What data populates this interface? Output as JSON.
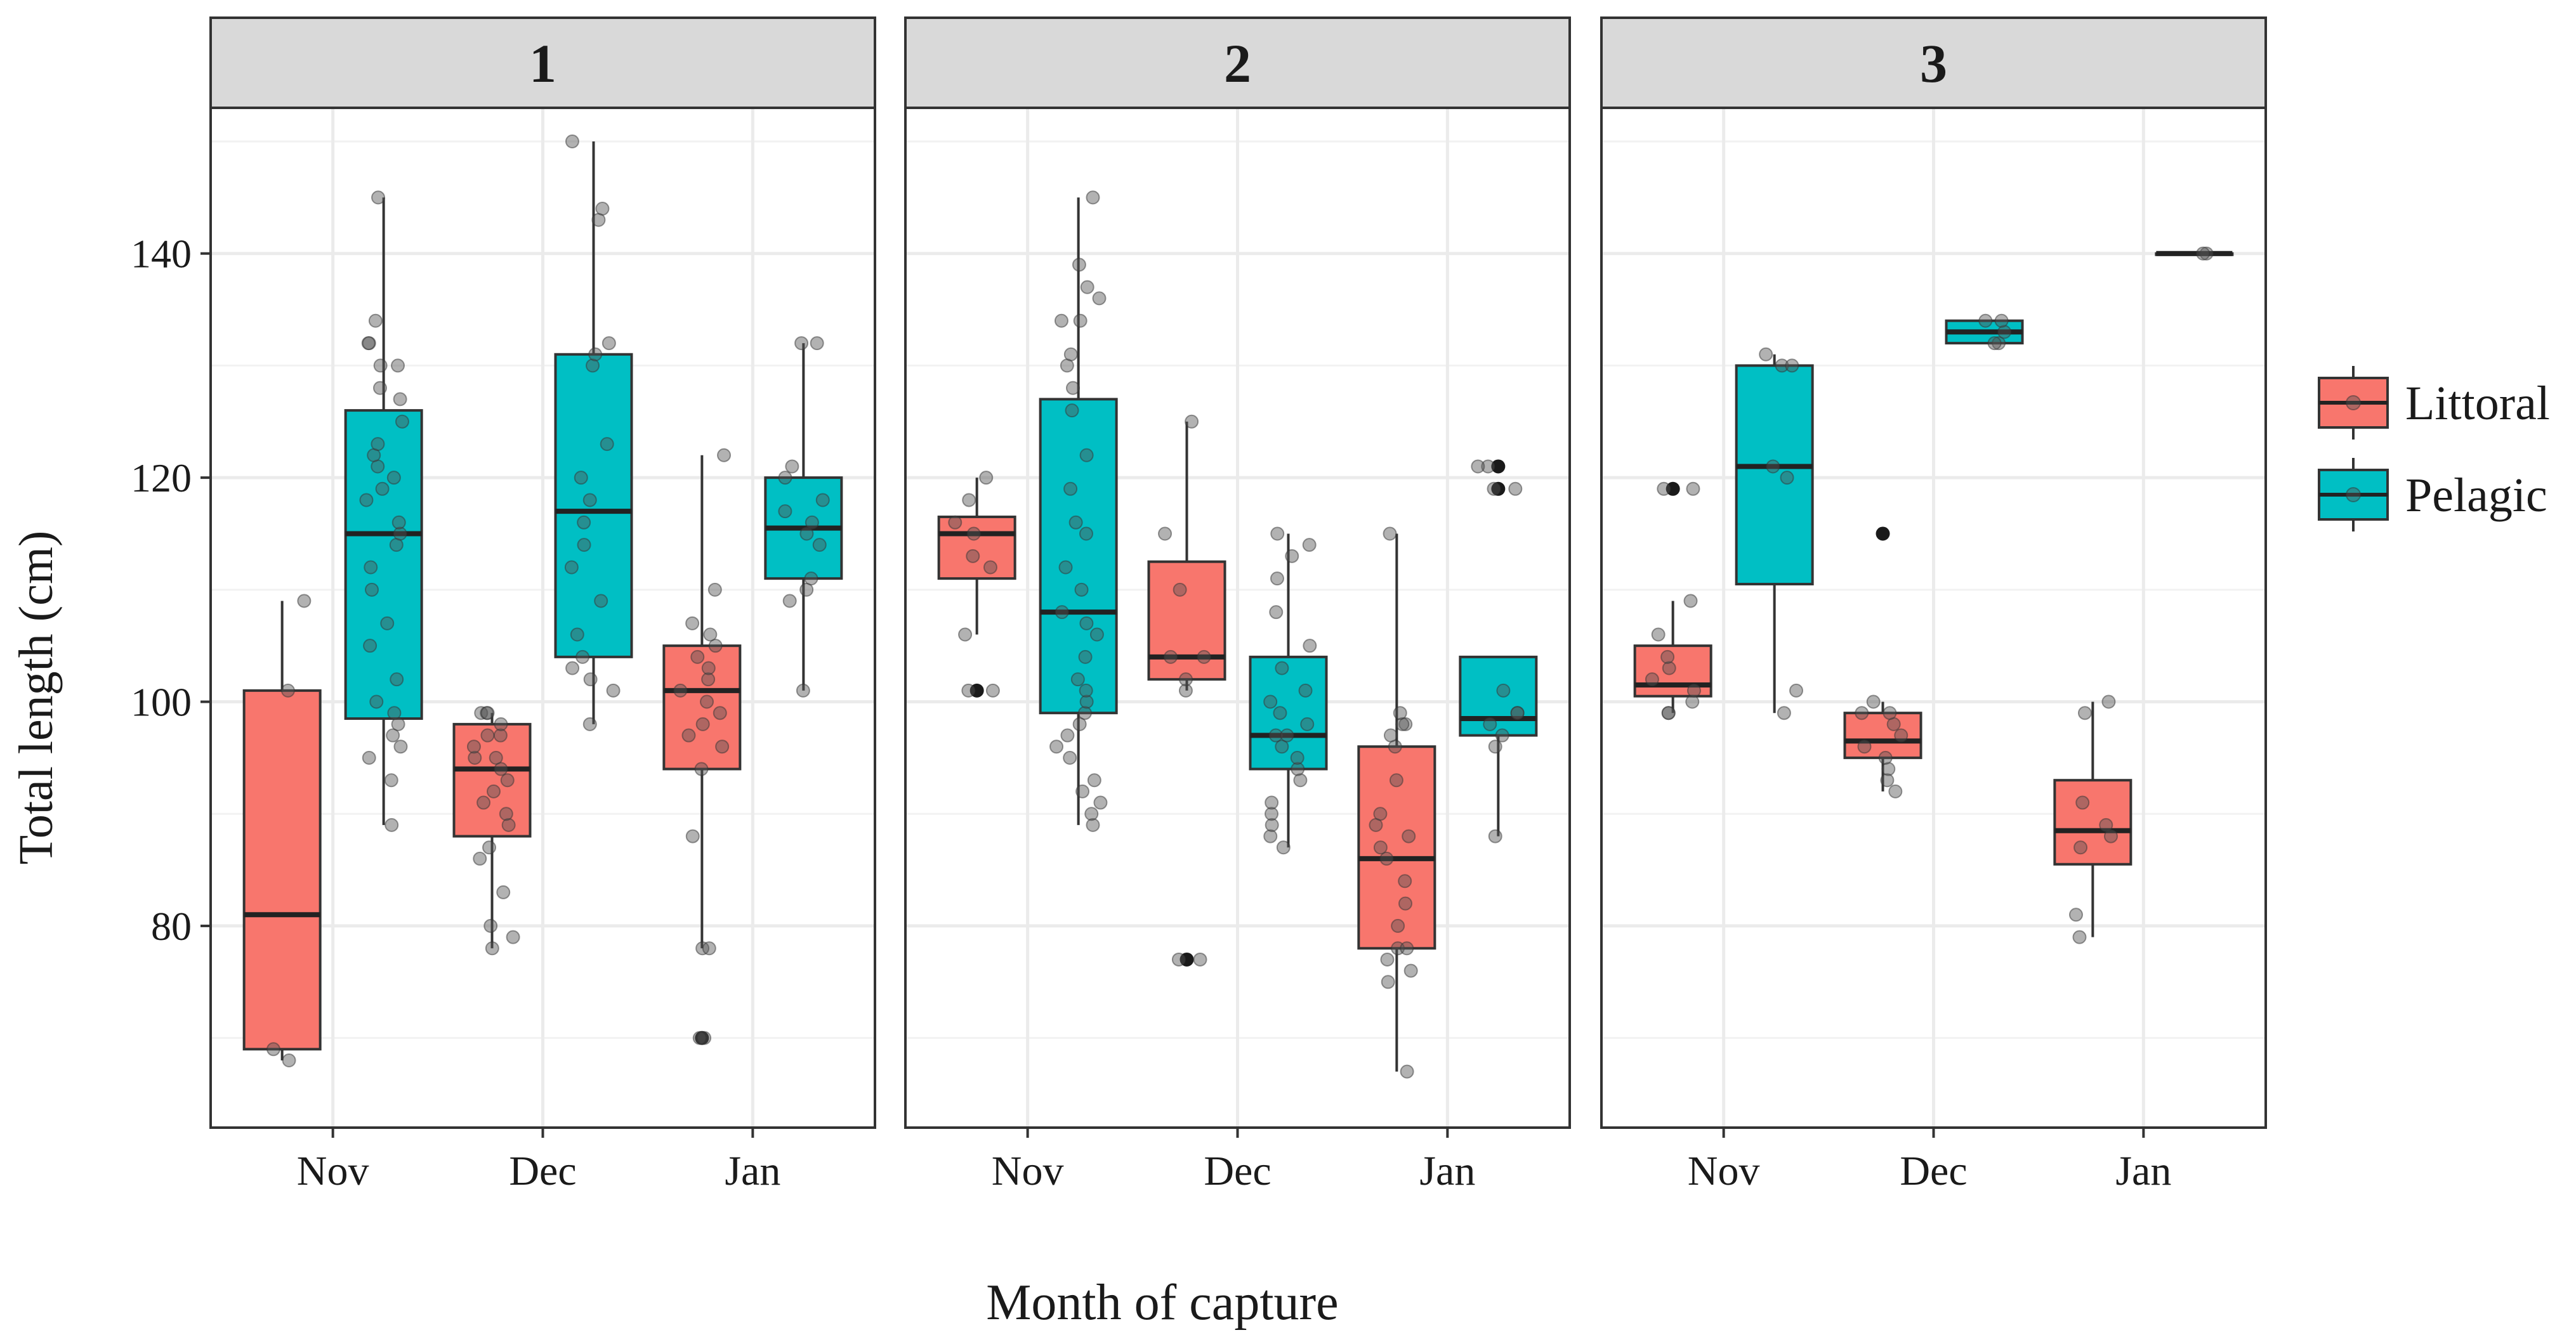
{
  "chart_data": {
    "type": "boxplot",
    "xlabel": "Month of capture",
    "ylabel": "Total length (cm)",
    "ylim": [
      62,
      153
    ],
    "yticks": [
      80,
      100,
      120,
      140
    ],
    "categories": [
      "Nov",
      "Dec",
      "Jan"
    ],
    "legend": {
      "position": "right",
      "entries": [
        {
          "name": "Littoral",
          "color": "#F8766D"
        },
        {
          "name": "Pelagic",
          "color": "#00BFC4"
        }
      ]
    },
    "colors": {
      "Littoral": "#F8766D",
      "Pelagic": "#00BFC4",
      "strip": "#d9d9d9",
      "panel_border": "#333333",
      "grid": "#ebebeb"
    },
    "panels": [
      {
        "label": "1",
        "boxes": [
          {
            "month": "Nov",
            "group": "Littoral",
            "min": 68,
            "q1": 69,
            "median": 81,
            "q3": 101,
            "max": 109,
            "outliers": [],
            "points": [
              68,
              69,
              101,
              109
            ]
          },
          {
            "month": "Nov",
            "group": "Pelagic",
            "min": 89,
            "q1": 98.5,
            "median": 115,
            "q3": 126,
            "max": 145,
            "outliers": [],
            "points": [
              89,
              93,
              95,
              96,
              97,
              98,
              99,
              100,
              102,
              105,
              107,
              110,
              112,
              114,
              115,
              116,
              118,
              119,
              120,
              121,
              122,
              123,
              125,
              127,
              128,
              130,
              130,
              132,
              132,
              134,
              145
            ]
          },
          {
            "month": "Dec",
            "group": "Littoral",
            "min": 78,
            "q1": 88,
            "median": 94,
            "q3": 98,
            "max": 99,
            "outliers": [],
            "points": [
              78,
              79,
              80,
              83,
              86,
              87,
              89,
              90,
              91,
              92,
              93,
              94,
              95,
              95,
              96,
              97,
              97,
              98,
              99,
              99,
              99
            ]
          },
          {
            "month": "Dec",
            "group": "Pelagic",
            "min": 98,
            "q1": 104,
            "median": 117,
            "q3": 131,
            "max": 150,
            "outliers": [],
            "points": [
              98,
              101,
              102,
              103,
              104,
              106,
              109,
              112,
              114,
              116,
              118,
              120,
              123,
              130,
              131,
              132,
              143,
              144,
              150
            ]
          },
          {
            "month": "Jan",
            "group": "Littoral",
            "min": 78,
            "q1": 94,
            "median": 101,
            "q3": 105,
            "max": 122,
            "outliers": [
              70
            ],
            "points": [
              70,
              70,
              78,
              78,
              88,
              94,
              96,
              97,
              98,
              99,
              100,
              101,
              102,
              103,
              104,
              105,
              106,
              107,
              110,
              122
            ]
          },
          {
            "month": "Jan",
            "group": "Pelagic",
            "min": 101,
            "q1": 111,
            "median": 115.5,
            "q3": 120,
            "max": 132,
            "outliers": [],
            "points": [
              101,
              109,
              110,
              111,
              114,
              115,
              116,
              117,
              118,
              120,
              121,
              132,
              132
            ]
          }
        ]
      },
      {
        "label": "2",
        "boxes": [
          {
            "month": "Nov",
            "group": "Littoral",
            "min": 106,
            "q1": 111,
            "median": 115,
            "q3": 116.5,
            "max": 120,
            "outliers": [
              101
            ],
            "points": [
              101,
              101,
              106,
              112,
              113,
              115,
              116,
              118,
              120
            ]
          },
          {
            "month": "Nov",
            "group": "Pelagic",
            "min": 89,
            "q1": 99,
            "median": 108,
            "q3": 127,
            "max": 145,
            "outliers": [],
            "points": [
              89,
              90,
              91,
              92,
              93,
              95,
              96,
              97,
              98,
              99,
              100,
              101,
              102,
              104,
              106,
              107,
              108,
              110,
              112,
              115,
              116,
              119,
              122,
              126,
              128,
              130,
              131,
              134,
              134,
              136,
              137,
              139,
              145
            ]
          },
          {
            "month": "Dec",
            "group": "Littoral",
            "min": 101,
            "q1": 102,
            "median": 104,
            "q3": 112.5,
            "max": 125,
            "outliers": [
              77
            ],
            "points": [
              77,
              77,
              101,
              102,
              104,
              104,
              110,
              115,
              125
            ]
          },
          {
            "month": "Dec",
            "group": "Pelagic",
            "min": 87,
            "q1": 94,
            "median": 97,
            "q3": 104,
            "max": 115,
            "outliers": [],
            "points": [
              87,
              88,
              89,
              90,
              91,
              93,
              94,
              95,
              96,
              97,
              97,
              98,
              99,
              100,
              101,
              103,
              105,
              108,
              111,
              113,
              114,
              115
            ]
          },
          {
            "month": "Jan",
            "group": "Littoral",
            "min": 67,
            "q1": 78,
            "median": 86,
            "q3": 96,
            "max": 115,
            "outliers": [],
            "points": [
              67,
              75,
              76,
              77,
              78,
              78,
              80,
              82,
              84,
              86,
              87,
              88,
              89,
              90,
              93,
              96,
              97,
              98,
              98,
              99,
              115
            ]
          },
          {
            "month": "Jan",
            "group": "Pelagic",
            "min": 88,
            "q1": 97,
            "median": 98.5,
            "q3": 104,
            "max": 104,
            "outliers": [
              119,
              121
            ],
            "points": [
              88,
              96,
              97,
              98,
              99,
              99,
              101,
              119,
              119,
              121,
              121
            ]
          }
        ]
      },
      {
        "label": "3",
        "boxes": [
          {
            "month": "Nov",
            "group": "Littoral",
            "min": 99,
            "q1": 100.5,
            "median": 101.5,
            "q3": 105,
            "max": 109,
            "outliers": [
              119
            ],
            "points": [
              99,
              99,
              100,
              101,
              102,
              103,
              104,
              106,
              109,
              119,
              119
            ]
          },
          {
            "month": "Nov",
            "group": "Pelagic",
            "min": 99,
            "q1": 110.5,
            "median": 121,
            "q3": 130,
            "max": 131,
            "outliers": [],
            "points": [
              99,
              101,
              120,
              121,
              130,
              130,
              131
            ]
          },
          {
            "month": "Dec",
            "group": "Littoral",
            "min": 92,
            "q1": 95,
            "median": 96.5,
            "q3": 99,
            "max": 100,
            "outliers": [
              115
            ],
            "points": [
              92,
              93,
              94,
              95,
              96,
              97,
              98,
              99,
              99,
              100
            ]
          },
          {
            "month": "Dec",
            "group": "Pelagic",
            "min": 132,
            "q1": 132,
            "median": 133,
            "q3": 134,
            "max": 134,
            "outliers": [],
            "points": [
              132,
              132,
              133,
              134,
              134
            ]
          },
          {
            "month": "Jan",
            "group": "Littoral",
            "min": 79,
            "q1": 85.5,
            "median": 88.5,
            "q3": 93,
            "max": 100,
            "outliers": [],
            "points": [
              79,
              81,
              87,
              88,
              89,
              91,
              99,
              100
            ]
          },
          {
            "month": "Jan",
            "group": "Pelagic",
            "min": 140,
            "q1": 140,
            "median": 140,
            "q3": 140,
            "max": 140,
            "outliers": [],
            "points": [
              140,
              140
            ]
          }
        ]
      }
    ]
  }
}
